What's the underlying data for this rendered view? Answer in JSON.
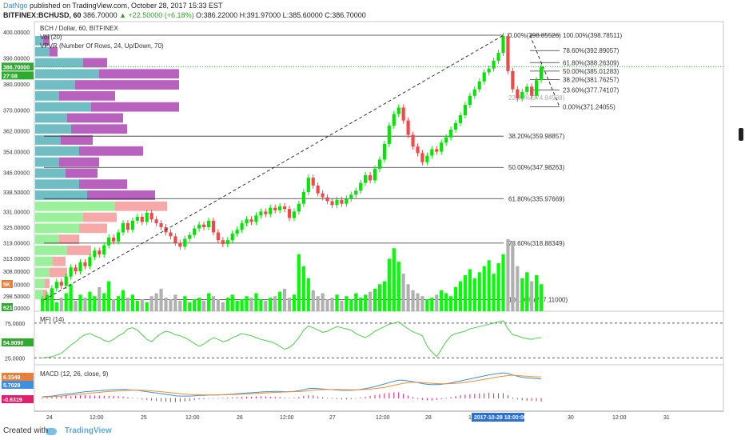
{
  "header": {
    "author": "DatNgo",
    "published": "published on TradingView.com, October 28, 2017 15:33 EST",
    "symbol": "BITFINEX:BCHUSD, 60",
    "last": "386.70000",
    "change": "▲ +22.50000 (+6.18%)",
    "ohlc": "O:386.22000  H:391.97000  L:385.60000  C:386.70000"
  },
  "legend": {
    "title": "BCH / Dollar, 60, BITFINEX",
    "vol": "Vol (20)",
    "vpvr": "VPVR (Number Of Rows, 24, Up/Down, 70)"
  },
  "footer": {
    "created": "Created with",
    "brand": "TradingView"
  },
  "colors": {
    "up": "#00e600",
    "down": "#f44747",
    "vol_up": "#00ff00",
    "vol_down": "#b0b0b0",
    "mfi": "#4cd04c",
    "macd": "#3f8fe0",
    "signal": "#f09030",
    "hist": "#e0206a",
    "vp_up": "#61b6be",
    "vp_down": "#b050b8"
  },
  "chart_data": [
    {
      "type": "candlestick",
      "title": "BCH / Dollar, 60, BITFINEX",
      "ylim": [
        292,
        401
      ],
      "price_ticks": [
        "400.00000",
        "390.00000",
        "380.00000",
        "370.00000",
        "362.00000",
        "354.00000",
        "346.00000",
        "338.50000",
        "331.00000",
        "325.00000",
        "319.00000",
        "313.00000",
        "308.00000",
        "303.00000",
        "298.50000",
        "294.00000"
      ],
      "price_tick_values": [
        400,
        390,
        380,
        370,
        362,
        354,
        346,
        338.5,
        331,
        325,
        319,
        313,
        308,
        303,
        298.5,
        294
      ],
      "x_ticks": [
        "24",
        "12:00",
        "25",
        "12:00",
        "26",
        "12:00",
        "27",
        "12:00",
        "28",
        "12:00",
        "30",
        "12:00",
        "31"
      ],
      "time_badge": "2017-10-28 18:00:00",
      "last_price_label": "386.70000",
      "countdown_label": "27:08",
      "closes": [
        297.5,
        299.0,
        301.5,
        304.0,
        302.5,
        306.0,
        309.5,
        308.0,
        311.5,
        310.0,
        313.5,
        316.0,
        314.5,
        318.0,
        321.0,
        319.5,
        323.0,
        326.5,
        324.0,
        327.5,
        329.0,
        327.0,
        330.5,
        328.0,
        326.5,
        325.0,
        323.0,
        321.5,
        319.0,
        317.5,
        320.5,
        322.0,
        324.5,
        326.0,
        325.0,
        327.5,
        323.0,
        320.0,
        318.5,
        320.0,
        322.5,
        324.0,
        326.5,
        328.0,
        327.0,
        329.5,
        331.0,
        330.0,
        332.5,
        331.5,
        333.0,
        332.0,
        328.5,
        331.0,
        334.0,
        338.5,
        344.0,
        341.0,
        338.0,
        336.5,
        335.0,
        333.5,
        335.5,
        334.0,
        336.0,
        337.5,
        339.0,
        342.0,
        345.0,
        343.0,
        347.5,
        351.0,
        357.0,
        364.0,
        368.5,
        371.0,
        366.0,
        360.5,
        356.0,
        353.5,
        350.0,
        352.5,
        355.0,
        354.0,
        357.5,
        359.5,
        362.5,
        365.0,
        368.0,
        372.0,
        375.5,
        378.0,
        381.0,
        384.5,
        386.0,
        389.0,
        392.0,
        398.5,
        385.0,
        378.0,
        374.5,
        377.0,
        379.0,
        375.5,
        381.5,
        386.7
      ],
      "volume": [
        8,
        10,
        14,
        6,
        9,
        12,
        18,
        7,
        11,
        9,
        13,
        10,
        16,
        12,
        20,
        8,
        10,
        14,
        9,
        11,
        7,
        8,
        6,
        10,
        12,
        15,
        9,
        8,
        11,
        7,
        10,
        6,
        8,
        9,
        7,
        12,
        10,
        8,
        6,
        9,
        11,
        7,
        8,
        10,
        9,
        12,
        8,
        7,
        9,
        10,
        13,
        15,
        9,
        11,
        38,
        30,
        22,
        14,
        10,
        12,
        8,
        9,
        11,
        7,
        10,
        8,
        12,
        9,
        11,
        13,
        15,
        18,
        20,
        35,
        42,
        33,
        25,
        18,
        14,
        12,
        10,
        8,
        9,
        11,
        14,
        12,
        10,
        16,
        20,
        24,
        28,
        22,
        26,
        30,
        34,
        25,
        32,
        38,
        48,
        46,
        30,
        22,
        26,
        20,
        24,
        18
      ],
      "fib_left": [
        {
          "label": "38.20%(359.98857)",
          "value": 359.99
        },
        {
          "label": "50.00%(347.98263)",
          "value": 347.98
        },
        {
          "label": "61.80%(335.97669)",
          "value": 335.98
        },
        {
          "label": "78.60%(318.88349)",
          "value": 318.88
        },
        {
          "label": "100.00%(297.11000)",
          "value": 297.11
        }
      ],
      "fib_top_label": "0.00%(398.85526)",
      "fib_right": [
        {
          "label": "100.00%(398.78511)",
          "value": 398.79
        },
        {
          "label": "78.60%(392.89057)",
          "value": 392.89
        },
        {
          "label": "61.80%(388.26309)",
          "value": 388.26
        },
        {
          "label": "50.00%(385.01283)",
          "value": 385.01
        },
        {
          "label": "38.20%(381.76257)",
          "value": 381.76
        },
        {
          "label": "23.60%(377.74107)",
          "value": 377.74
        },
        {
          "label": "0.00%(371.24055)",
          "value": 371.24
        }
      ],
      "fib_faded_label": "23.60%(374.84938)",
      "vpvr_rows": [
        {
          "price": 398.0,
          "up": 10,
          "down": 8
        },
        {
          "price": 393.5,
          "up": 18,
          "down": 10
        },
        {
          "price": 389.0,
          "up": 60,
          "down": 30
        },
        {
          "price": 384.5,
          "up": 80,
          "down": 100
        },
        {
          "price": 379.5,
          "up": 50,
          "down": 130
        },
        {
          "price": 375.0,
          "up": 30,
          "down": 70
        },
        {
          "price": 370.5,
          "up": 70,
          "down": 110
        },
        {
          "price": 366.0,
          "up": 40,
          "down": 70
        },
        {
          "price": 361.5,
          "up": 45,
          "down": 70
        },
        {
          "price": 357.0,
          "up": 32,
          "down": 40
        },
        {
          "price": 352.0,
          "up": 55,
          "down": 80
        },
        {
          "price": 347.5,
          "up": 30,
          "down": 50
        },
        {
          "price": 343.0,
          "up": 38,
          "down": 40
        },
        {
          "price": 338.5,
          "up": 55,
          "down": 60
        },
        {
          "price": 334.0,
          "up": 65,
          "down": 85
        },
        {
          "price": 329.5,
          "up": 100,
          "down": 65
        },
        {
          "price": 325.0,
          "up": 60,
          "down": 42
        },
        {
          "price": 320.5,
          "up": 55,
          "down": 35
        },
        {
          "price": 316.0,
          "up": 30,
          "down": 25
        },
        {
          "price": 311.5,
          "up": 40,
          "down": 30
        },
        {
          "price": 307.0,
          "up": 22,
          "down": 16
        },
        {
          "price": 302.5,
          "up": 18,
          "down": 22
        },
        {
          "price": 298.0,
          "up": 12,
          "down": 6
        },
        {
          "price": 293.5,
          "up": 10,
          "down": 5
        }
      ],
      "volume_badges": [
        "5K",
        "621"
      ]
    },
    {
      "type": "line",
      "title": "MFI (14)",
      "ylim": [
        15,
        95
      ],
      "levels": [
        80,
        20
      ],
      "ticks": [
        "75.0000",
        "25.0000"
      ],
      "last_label": "54.9090",
      "values": [
        20,
        21,
        22,
        25,
        28,
        35,
        42,
        48,
        55,
        60,
        62,
        58,
        55,
        50,
        48,
        52,
        58,
        62,
        70,
        72,
        68,
        60,
        52,
        48,
        56,
        62,
        66,
        64,
        60,
        58,
        55,
        50,
        45,
        40,
        44,
        50,
        55,
        52,
        48,
        50,
        55,
        58,
        62,
        60,
        58,
        55,
        52,
        50,
        48,
        45,
        40,
        35,
        38,
        45,
        55,
        68,
        75,
        72,
        68,
        64,
        66,
        70,
        74,
        72,
        70,
        68,
        62,
        58,
        55,
        60,
        66,
        70,
        74,
        78,
        80,
        82,
        76,
        70,
        65,
        62,
        58,
        40,
        30,
        22,
        35,
        48,
        58,
        62,
        64,
        66,
        70,
        72,
        74,
        76,
        78,
        80,
        82,
        84,
        70,
        60,
        58,
        55,
        53,
        52,
        54,
        55
      ]
    },
    {
      "type": "line",
      "title": "MACD (12, 26, close, 9)",
      "ylim": [
        -2,
        8
      ],
      "labels": [
        "6.3348",
        "5.7029",
        "-0.6319"
      ],
      "macd": [
        0.4,
        0.5,
        0.6,
        0.8,
        1.0,
        1.2,
        1.3,
        1.5,
        1.7,
        1.9,
        2.0,
        2.1,
        2.2,
        2.3,
        2.4,
        2.5,
        2.6,
        2.6,
        2.5,
        2.4,
        2.3,
        2.1,
        1.9,
        1.7,
        1.5,
        1.3,
        1.1,
        0.9,
        0.7,
        0.6,
        0.6,
        0.6,
        0.7,
        0.8,
        0.8,
        0.9,
        0.9,
        0.9,
        1.0,
        1.1,
        1.2,
        1.3,
        1.4,
        1.5,
        1.6,
        1.7,
        1.8,
        1.9,
        1.9,
        2.0,
        2.0,
        1.9,
        1.9,
        2.0,
        2.2,
        2.5,
        2.8,
        2.9,
        2.8,
        2.7,
        2.6,
        2.5,
        2.4,
        2.3,
        2.3,
        2.3,
        2.4,
        2.6,
        2.8,
        3.1,
        3.4,
        3.8,
        4.2,
        4.6,
        5.0,
        5.3,
        5.3,
        5.1,
        4.9,
        4.6,
        4.3,
        4.1,
        4.0,
        4.0,
        4.1,
        4.3,
        4.5,
        4.8,
        5.1,
        5.4,
        5.7,
        6.0,
        6.3,
        6.6,
        6.9,
        7.1,
        7.3,
        7.5,
        7.3,
        6.9,
        6.5,
        6.2,
        6.0,
        5.9,
        5.8,
        5.7
      ],
      "signal": [
        0.3,
        0.35,
        0.4,
        0.5,
        0.6,
        0.75,
        0.9,
        1.0,
        1.15,
        1.3,
        1.45,
        1.6,
        1.7,
        1.85,
        1.95,
        2.05,
        2.15,
        2.25,
        2.3,
        2.35,
        2.35,
        2.3,
        2.25,
        2.15,
        2.05,
        1.9,
        1.75,
        1.6,
        1.45,
        1.3,
        1.2,
        1.1,
        1.05,
        1.0,
        0.95,
        0.95,
        0.95,
        0.95,
        0.95,
        1.0,
        1.05,
        1.1,
        1.15,
        1.2,
        1.3,
        1.35,
        1.45,
        1.55,
        1.6,
        1.7,
        1.75,
        1.8,
        1.85,
        1.9,
        1.95,
        2.05,
        2.2,
        2.35,
        2.45,
        2.5,
        2.55,
        2.55,
        2.55,
        2.5,
        2.5,
        2.45,
        2.45,
        2.5,
        2.55,
        2.65,
        2.8,
        3.0,
        3.2,
        3.5,
        3.8,
        4.1,
        4.4,
        4.6,
        4.7,
        4.7,
        4.6,
        4.5,
        4.4,
        4.3,
        4.25,
        4.25,
        4.3,
        4.4,
        4.5,
        4.7,
        4.9,
        5.1,
        5.3,
        5.6,
        5.8,
        6.1,
        6.3,
        6.5,
        6.7,
        6.8,
        6.7,
        6.6,
        6.5,
        6.4,
        6.3,
        6.33
      ]
    }
  ]
}
